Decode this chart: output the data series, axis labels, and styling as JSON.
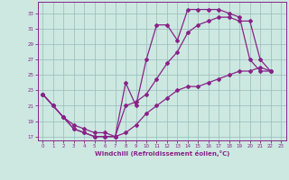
{
  "xlabel": "Windchill (Refroidissement éolien,°C)",
  "bg_color": "#cce8e0",
  "line_color": "#882288",
  "marker": "D",
  "markersize": 2.0,
  "linewidth": 0.9,
  "xlim": [
    -0.5,
    23.5
  ],
  "ylim": [
    16.5,
    34.5
  ],
  "xticks": [
    0,
    1,
    2,
    3,
    4,
    5,
    6,
    7,
    8,
    9,
    10,
    11,
    12,
    13,
    14,
    15,
    16,
    17,
    18,
    19,
    20,
    21,
    22,
    23
  ],
  "yticks": [
    17,
    19,
    21,
    23,
    25,
    27,
    29,
    31,
    33
  ],
  "grid_color": "#99bbbb",
  "series1_x": [
    0,
    1,
    2,
    3,
    4,
    5,
    6,
    7,
    8,
    9,
    10,
    11,
    12,
    13,
    14,
    15,
    16,
    17,
    18,
    19,
    20,
    21,
    22
  ],
  "series1_y": [
    22.5,
    21.0,
    19.5,
    18.0,
    17.5,
    17.0,
    17.0,
    17.0,
    24.0,
    21.0,
    27.0,
    31.5,
    31.5,
    29.5,
    33.5,
    33.5,
    33.5,
    33.5,
    33.0,
    32.5,
    27.0,
    25.5,
    25.5
  ],
  "series2_x": [
    0,
    1,
    2,
    3,
    4,
    5,
    6,
    7,
    8,
    9,
    10,
    11,
    12,
    13,
    14,
    15,
    16,
    17,
    18,
    19,
    20,
    21,
    22
  ],
  "series2_y": [
    22.5,
    21.0,
    19.5,
    18.0,
    17.5,
    17.0,
    17.0,
    17.0,
    21.0,
    21.5,
    22.5,
    24.5,
    26.5,
    28.0,
    30.5,
    31.5,
    32.0,
    32.5,
    32.5,
    32.0,
    32.0,
    27.0,
    25.5
  ],
  "series3_x": [
    0,
    1,
    2,
    3,
    4,
    5,
    6,
    7,
    8,
    9,
    10,
    11,
    12,
    13,
    14,
    15,
    16,
    17,
    18,
    19,
    20,
    21,
    22
  ],
  "series3_y": [
    22.5,
    21.0,
    19.5,
    18.5,
    18.0,
    17.5,
    17.5,
    17.0,
    17.5,
    18.5,
    20.0,
    21.0,
    22.0,
    23.0,
    23.5,
    23.5,
    24.0,
    24.5,
    25.0,
    25.5,
    25.5,
    26.0,
    25.5
  ]
}
